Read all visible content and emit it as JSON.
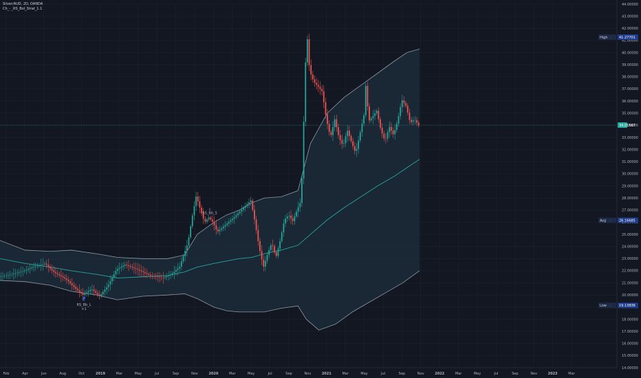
{
  "header": {
    "symbol_line": "Silver/AUD, 2D, OANDA",
    "indicator_line": "Ch_- _RS_Bol_Strat_1.1"
  },
  "colors": {
    "background": "#131722",
    "band_fill": "#1c2b3a",
    "band_line": "#8f9aa8",
    "basis": "#26a69a",
    "up": "#26a69a",
    "down": "#ef5350",
    "grid": "#1e222d",
    "axis_text": "#b2b5be",
    "label_bg": "#1e3a8a",
    "last_price_bg": "#26a69a"
  },
  "chart_data": {
    "type": "line",
    "title": "Silver/AUD, 2D, OANDA",
    "x_ticks": [
      "Feb",
      "Apr",
      "Jun",
      "Aug",
      "Oct",
      "2019",
      "Mar",
      "May",
      "Jul",
      "Sep",
      "Nov",
      "2020",
      "Mar",
      "May",
      "Jul",
      "Sep",
      "Nov",
      "2021",
      "Mar",
      "May",
      "Jul",
      "Sep",
      "Nov",
      "2022",
      "Mar",
      "May",
      "Jul",
      "Sep",
      "Nov",
      "2023",
      "Mar"
    ],
    "y_ticks": [
      "44.00000",
      "43.00000",
      "42.00000",
      "41.00000",
      "40.00000",
      "39.00000",
      "38.00000",
      "37.00000",
      "36.00000",
      "35.00000",
      "34.00000",
      "33.00000",
      "32.00000",
      "31.00000",
      "30.00000",
      "29.00000",
      "28.00000",
      "27.00000",
      "26.00000",
      "25.00000",
      "24.00000",
      "23.00000",
      "22.00000",
      "21.00000",
      "20.00000",
      "19.00000",
      "18.00000",
      "17.00000",
      "16.00000",
      "15.00000",
      "14.00000"
    ],
    "ylim": [
      14,
      44
    ],
    "price_labels": [
      {
        "name": "High",
        "value": "41.27701",
        "y": 41.277
      },
      {
        "name": "",
        "value": "34.01567",
        "y": 34.016
      },
      {
        "name": "Avg",
        "value": "26.16685",
        "y": 26.167
      },
      {
        "name": "Low",
        "value": "19.13836",
        "y": 19.138
      }
    ],
    "annotations": [
      {
        "label": "RS_Bb_L",
        "sub": "+1",
        "type": "buy",
        "t": 0.2,
        "y": 19.9
      },
      {
        "label": "RS_Bb_S",
        "sub": "",
        "type": "sell",
        "t": 0.5,
        "y": 26.5
      }
    ],
    "series": [
      {
        "name": "",
        "kind": "upper_band",
        "points": [
          [
            0.0,
            24.5
          ],
          [
            0.06,
            23.7
          ],
          [
            0.12,
            23.6
          ],
          [
            0.17,
            23.7
          ],
          [
            0.23,
            23.4
          ],
          [
            0.28,
            23.1
          ],
          [
            0.34,
            23.0
          ],
          [
            0.4,
            23.0
          ],
          [
            0.44,
            23.3
          ],
          [
            0.47,
            25.0
          ],
          [
            0.51,
            26.0
          ],
          [
            0.54,
            26.6
          ],
          [
            0.57,
            27.0
          ],
          [
            0.6,
            27.6
          ],
          [
            0.63,
            28.0
          ],
          [
            0.67,
            28.1
          ],
          [
            0.71,
            28.6
          ],
          [
            0.74,
            32.5
          ],
          [
            0.78,
            35.0
          ],
          [
            0.82,
            36.3
          ],
          [
            0.86,
            37.3
          ],
          [
            0.9,
            38.3
          ],
          [
            0.94,
            39.3
          ],
          [
            0.97,
            40.0
          ],
          [
            1.0,
            40.3
          ]
        ]
      },
      {
        "name": "",
        "kind": "basis",
        "points": [
          [
            0.0,
            23.0
          ],
          [
            0.06,
            22.6
          ],
          [
            0.12,
            22.3
          ],
          [
            0.17,
            22.0
          ],
          [
            0.23,
            21.7
          ],
          [
            0.28,
            21.4
          ],
          [
            0.34,
            21.5
          ],
          [
            0.4,
            21.6
          ],
          [
            0.44,
            21.9
          ],
          [
            0.47,
            22.3
          ],
          [
            0.51,
            22.6
          ],
          [
            0.54,
            22.8
          ],
          [
            0.57,
            23.0
          ],
          [
            0.6,
            23.1
          ],
          [
            0.63,
            23.4
          ],
          [
            0.67,
            23.7
          ],
          [
            0.71,
            24.1
          ],
          [
            0.74,
            25.0
          ],
          [
            0.78,
            26.2
          ],
          [
            0.82,
            27.2
          ],
          [
            0.86,
            28.1
          ],
          [
            0.9,
            29.0
          ],
          [
            0.94,
            29.8
          ],
          [
            0.97,
            30.5
          ],
          [
            1.0,
            31.2
          ]
        ]
      },
      {
        "name": "",
        "kind": "lower_band",
        "points": [
          [
            0.0,
            21.2
          ],
          [
            0.06,
            21.1
          ],
          [
            0.12,
            20.8
          ],
          [
            0.17,
            20.3
          ],
          [
            0.23,
            20.0
          ],
          [
            0.28,
            19.6
          ],
          [
            0.34,
            19.9
          ],
          [
            0.4,
            20.0
          ],
          [
            0.44,
            20.1
          ],
          [
            0.47,
            19.7
          ],
          [
            0.51,
            19.0
          ],
          [
            0.54,
            18.7
          ],
          [
            0.57,
            18.6
          ],
          [
            0.6,
            18.6
          ],
          [
            0.63,
            18.6
          ],
          [
            0.67,
            18.9
          ],
          [
            0.71,
            19.1
          ],
          [
            0.73,
            18.0
          ],
          [
            0.76,
            17.1
          ],
          [
            0.8,
            17.6
          ],
          [
            0.84,
            18.6
          ],
          [
            0.88,
            19.4
          ],
          [
            0.92,
            20.2
          ],
          [
            0.96,
            21.0
          ],
          [
            1.0,
            22.0
          ]
        ]
      },
      {
        "name": "",
        "kind": "price",
        "points": [
          [
            0.0,
            21.5
          ],
          [
            0.03,
            21.7
          ],
          [
            0.06,
            22.0
          ],
          [
            0.08,
            22.3
          ],
          [
            0.11,
            22.6
          ],
          [
            0.13,
            21.9
          ],
          [
            0.16,
            21.3
          ],
          [
            0.18,
            20.6
          ],
          [
            0.2,
            20.0
          ],
          [
            0.22,
            20.5
          ],
          [
            0.24,
            19.9
          ],
          [
            0.26,
            20.8
          ],
          [
            0.28,
            22.1
          ],
          [
            0.3,
            22.5
          ],
          [
            0.33,
            22.1
          ],
          [
            0.36,
            21.6
          ],
          [
            0.39,
            21.4
          ],
          [
            0.41,
            21.7
          ],
          [
            0.43,
            22.3
          ],
          [
            0.45,
            24.3
          ],
          [
            0.46,
            26.4
          ],
          [
            0.47,
            28.2
          ],
          [
            0.48,
            27.0
          ],
          [
            0.49,
            26.0
          ],
          [
            0.5,
            26.4
          ],
          [
            0.51,
            26.0
          ],
          [
            0.52,
            25.2
          ],
          [
            0.54,
            25.8
          ],
          [
            0.56,
            26.4
          ],
          [
            0.58,
            27.1
          ],
          [
            0.6,
            27.8
          ],
          [
            0.61,
            26.0
          ],
          [
            0.62,
            23.9
          ],
          [
            0.63,
            22.3
          ],
          [
            0.64,
            23.4
          ],
          [
            0.65,
            24.3
          ],
          [
            0.66,
            23.1
          ],
          [
            0.67,
            24.5
          ],
          [
            0.68,
            26.2
          ],
          [
            0.69,
            26.6
          ],
          [
            0.7,
            26.1
          ],
          [
            0.71,
            27.0
          ],
          [
            0.72,
            27.8
          ],
          [
            0.725,
            33.0
          ],
          [
            0.73,
            39.0
          ],
          [
            0.735,
            41.2
          ],
          [
            0.74,
            38.5
          ],
          [
            0.75,
            37.6
          ],
          [
            0.76,
            37.2
          ],
          [
            0.77,
            36.8
          ],
          [
            0.78,
            34.5
          ],
          [
            0.79,
            33.0
          ],
          [
            0.8,
            34.5
          ],
          [
            0.81,
            33.0
          ],
          [
            0.82,
            32.3
          ],
          [
            0.83,
            33.6
          ],
          [
            0.84,
            32.6
          ],
          [
            0.85,
            31.7
          ],
          [
            0.86,
            33.3
          ],
          [
            0.87,
            34.9
          ],
          [
            0.875,
            37.9
          ],
          [
            0.88,
            34.3
          ],
          [
            0.89,
            34.7
          ],
          [
            0.9,
            35.2
          ],
          [
            0.91,
            33.6
          ],
          [
            0.92,
            32.7
          ],
          [
            0.93,
            33.9
          ],
          [
            0.94,
            33.2
          ],
          [
            0.95,
            34.4
          ],
          [
            0.96,
            36.1
          ],
          [
            0.97,
            35.6
          ],
          [
            0.98,
            34.2
          ],
          [
            0.99,
            34.5
          ],
          [
            1.0,
            34.0
          ]
        ]
      }
    ]
  }
}
